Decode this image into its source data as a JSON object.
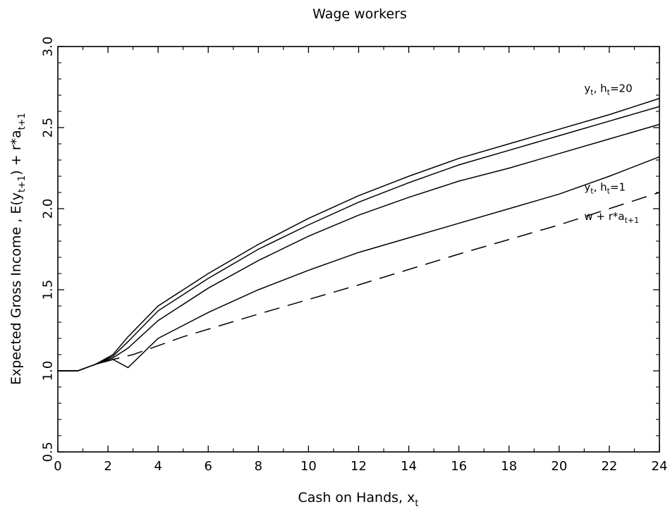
{
  "chart_data": {
    "type": "line",
    "title": "Wage workers",
    "xlabel": {
      "main": "Cash on Hands, x",
      "sub": "t"
    },
    "ylabel": {
      "p1": "Expected Gross Income , E(y",
      "s1": "t+1",
      "p2": ") + r*a",
      "s2": "t+1"
    },
    "xlim": [
      0,
      24
    ],
    "ylim": [
      0.5,
      3.0
    ],
    "xticks": [
      0,
      2,
      4,
      6,
      8,
      10,
      12,
      14,
      16,
      18,
      20,
      22,
      24
    ],
    "yticks": [
      0.5,
      1.0,
      1.5,
      2.0,
      2.5,
      3.0
    ],
    "ytick_labels": [
      "0.5",
      "1.0",
      "1.5",
      "2.0",
      "2.5",
      "3.0"
    ],
    "grid": false,
    "series": [
      {
        "key": "h20",
        "style": "solid",
        "x": [
          0,
          0.8,
          1.5,
          2.2,
          2.8,
          4,
          6,
          8,
          10,
          12,
          14,
          16,
          18,
          20,
          22,
          24
        ],
        "y": [
          1.0,
          1.0,
          1.04,
          1.1,
          1.21,
          1.4,
          1.6,
          1.78,
          1.94,
          2.08,
          2.2,
          2.31,
          2.4,
          2.49,
          2.58,
          2.68
        ]
      },
      {
        "key": "h_mid_upper",
        "style": "solid",
        "x": [
          0,
          0.8,
          1.5,
          2.2,
          2.8,
          4,
          6,
          8,
          10,
          12,
          14,
          16,
          18,
          20,
          22,
          24
        ],
        "y": [
          1.0,
          1.0,
          1.04,
          1.09,
          1.18,
          1.37,
          1.57,
          1.75,
          1.9,
          2.04,
          2.16,
          2.27,
          2.36,
          2.45,
          2.54,
          2.63
        ]
      },
      {
        "key": "h_mid_lower",
        "style": "solid",
        "x": [
          0,
          0.8,
          1.5,
          2.2,
          2.8,
          4,
          6,
          8,
          10,
          12,
          14,
          16,
          18,
          20,
          22,
          24
        ],
        "y": [
          1.0,
          1.0,
          1.04,
          1.08,
          1.14,
          1.31,
          1.51,
          1.68,
          1.83,
          1.96,
          2.07,
          2.17,
          2.25,
          2.34,
          2.43,
          2.52
        ]
      },
      {
        "key": "h1",
        "style": "solid",
        "x": [
          0,
          0.8,
          1.5,
          2.2,
          2.8,
          4,
          6,
          8,
          10,
          12,
          14,
          16,
          18,
          20,
          22,
          24
        ],
        "y": [
          1.0,
          1.0,
          1.04,
          1.07,
          1.02,
          1.2,
          1.36,
          1.5,
          1.62,
          1.73,
          1.82,
          1.91,
          2.0,
          2.09,
          2.2,
          2.32
        ]
      },
      {
        "key": "w_ra",
        "style": "dashed",
        "x": [
          0,
          0.8,
          1.5,
          2.2,
          3,
          5,
          8,
          12,
          16,
          20,
          24
        ],
        "y": [
          1.0,
          1.0,
          1.04,
          1.07,
          1.1,
          1.21,
          1.35,
          1.53,
          1.72,
          1.9,
          2.1
        ]
      }
    ],
    "annotations": [
      {
        "key": "h20",
        "main": "y",
        "sub": "t",
        "rest": ", h",
        "sub2": "t",
        "tail": "=20",
        "x": 21.0,
        "y": 2.72
      },
      {
        "key": "h1",
        "main": "y",
        "sub": "t",
        "rest": ", h",
        "sub2": "t",
        "tail": "=1",
        "x": 21.0,
        "y": 2.11
      },
      {
        "key": "w_ra",
        "main": "w + r*a",
        "sub": "t+1",
        "x": 21.0,
        "y": 1.93
      }
    ]
  }
}
